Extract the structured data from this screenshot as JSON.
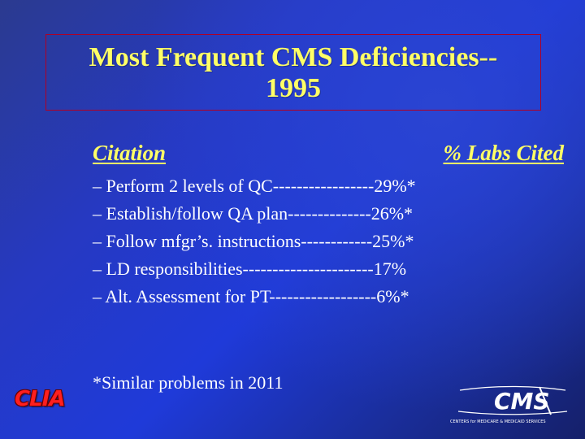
{
  "title": {
    "line1": "Most Frequent CMS Deficiencies--",
    "line2": "1995"
  },
  "table_header": {
    "left": "Citation",
    "right": "% Labs Cited"
  },
  "items": [
    "– Perform 2 levels of QC-----------------29%*",
    "– Establish/follow QA plan--------------26%*",
    "– Follow mfgr’s. instructions------------25%*",
    "– LD responsibilities----------------------17%",
    "– Alt. Assessment for PT------------------6%*"
  ],
  "footnote": "*Similar problems in 2011",
  "logos": {
    "clia": "CLIA",
    "cms": "CMS",
    "cms_tagline": "CENTERS for MEDICARE & MEDICAID SERVICES"
  },
  "colors": {
    "title": "#ffff66",
    "title_border": "#b00025",
    "body_text": "#ffffff",
    "clia": "#ff1f1f"
  }
}
